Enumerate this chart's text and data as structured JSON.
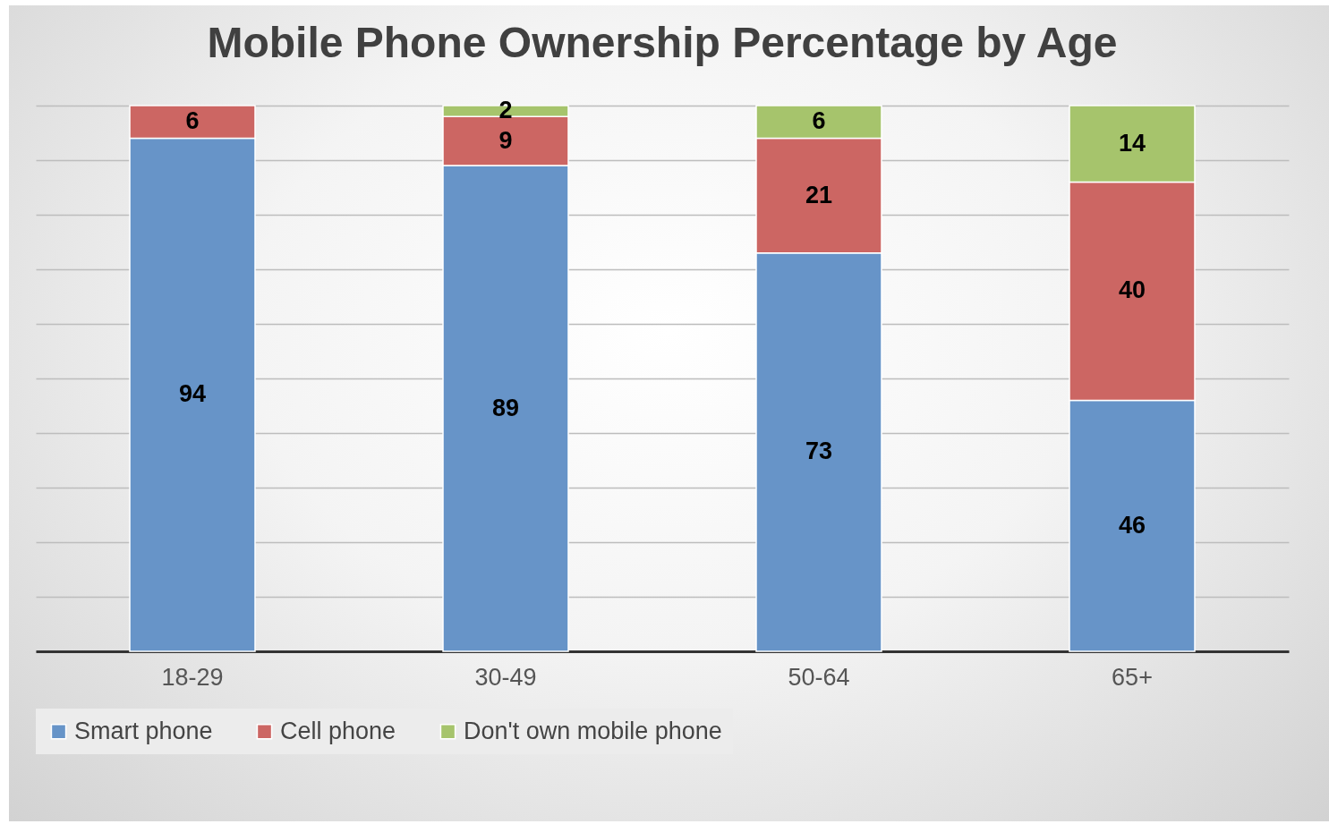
{
  "chart_data": {
    "type": "bar",
    "title": "Mobile Phone Ownership Percentage by Age",
    "categories": [
      "18-29",
      "30-49",
      "50-64",
      "65+"
    ],
    "stacked": true,
    "series": [
      {
        "name": "Smart phone",
        "color": "#6794c8",
        "values": [
          94,
          89,
          73,
          46
        ]
      },
      {
        "name": "Cell phone",
        "color": "#cc6663",
        "values": [
          6,
          9,
          21,
          40
        ]
      },
      {
        "name": "Don't own mobile phone",
        "color": "#a6c46c",
        "values": [
          null,
          2,
          6,
          14
        ]
      }
    ],
    "data_labels": true,
    "tick_labels": "x",
    "grid": "y",
    "legend": "bottom"
  }
}
